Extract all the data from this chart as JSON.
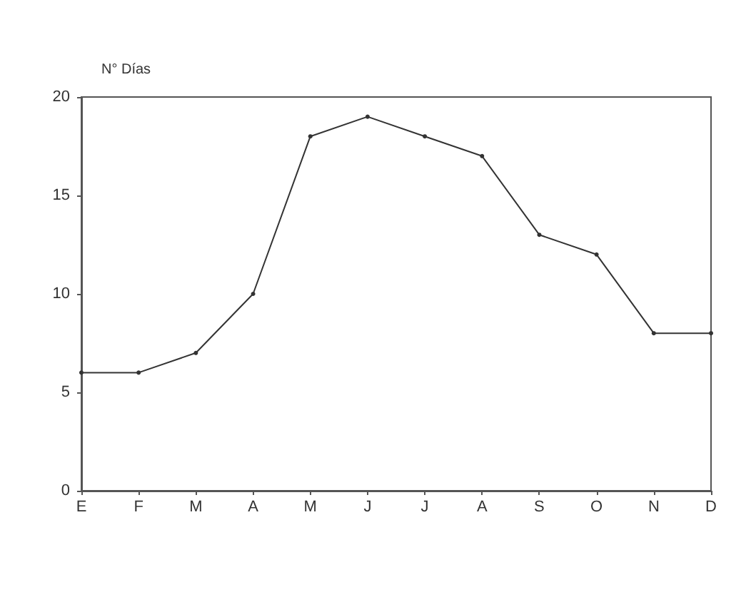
{
  "chart_data": {
    "type": "line",
    "ylabel": "N° Días",
    "categories": [
      "E",
      "F",
      "M",
      "A",
      "M",
      "J",
      "J",
      "A",
      "S",
      "O",
      "N",
      "D"
    ],
    "series": [
      {
        "color": "#333333",
        "values": [
          6,
          6,
          7,
          10,
          18,
          19,
          18,
          17,
          13,
          12,
          8,
          8
        ]
      }
    ],
    "ylim": [
      0,
      20
    ],
    "yticks": [
      0,
      5,
      10,
      15,
      20
    ],
    "grid": false,
    "marker": "circle",
    "line_style": "solid"
  }
}
